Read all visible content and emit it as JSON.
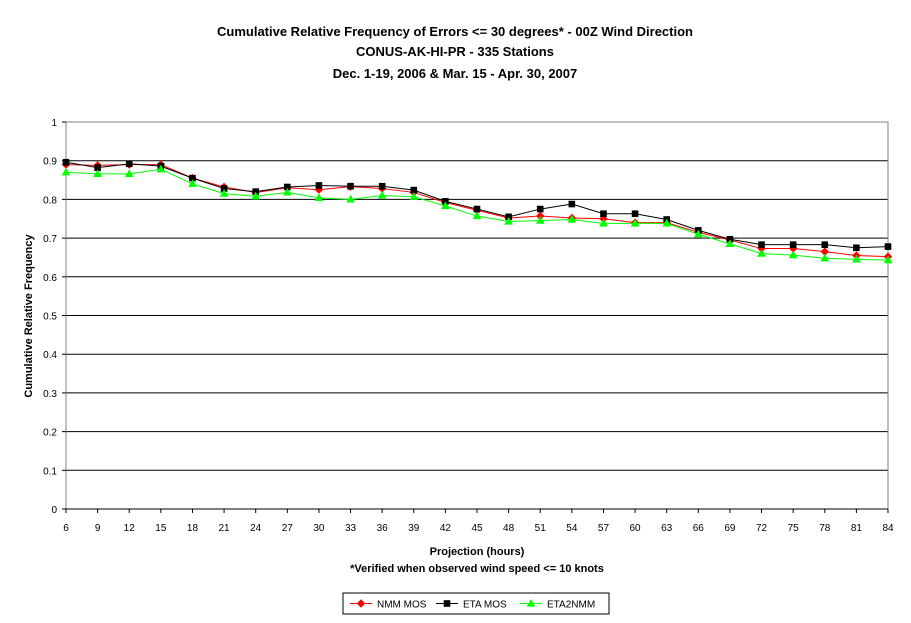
{
  "chart_data": {
    "type": "line",
    "title": "Cumulative Relative Frequency of Errors <= 30 degrees* - 00Z Wind Direction",
    "subtitle_lines": [
      "CONUS-AK-HI-PR - 335 Stations",
      "Dec. 1-19, 2006 & Mar. 15 - Apr. 30, 2007"
    ],
    "xlabel": "Projection (hours)",
    "footnote": "*Verified when observed wind speed <= 10 knots",
    "ylabel": "Cumulative Relative Frequency",
    "ylim": [
      0,
      1
    ],
    "yticks": [
      0,
      0.1,
      0.2,
      0.3,
      0.4,
      0.5,
      0.6,
      0.7,
      0.8,
      0.9,
      1
    ],
    "ytick_labels": [
      "0",
      "0.1",
      "0.2",
      "0.3",
      "0.4",
      "0.5",
      "0.6",
      "0.7",
      "0.8",
      "0.9",
      "1"
    ],
    "grid": "horizontal",
    "legend_position": "bottom",
    "x": [
      6,
      9,
      12,
      15,
      18,
      21,
      24,
      27,
      30,
      33,
      36,
      39,
      42,
      45,
      48,
      51,
      54,
      57,
      60,
      63,
      66,
      69,
      72,
      75,
      78,
      81,
      84
    ],
    "series": [
      {
        "name": "NMM MOS",
        "color": "#ff0000",
        "marker": "diamond",
        "values": [
          0.89,
          0.888,
          0.89,
          0.89,
          0.855,
          0.832,
          0.818,
          0.83,
          0.825,
          0.833,
          0.828,
          0.818,
          0.792,
          0.772,
          0.752,
          0.757,
          0.752,
          0.75,
          0.74,
          0.74,
          0.715,
          0.695,
          0.673,
          0.673,
          0.665,
          0.655,
          0.652
        ]
      },
      {
        "name": "ETA MOS",
        "color": "#000000",
        "marker": "square",
        "values": [
          0.896,
          0.882,
          0.892,
          0.886,
          0.855,
          0.828,
          0.82,
          0.832,
          0.836,
          0.834,
          0.834,
          0.824,
          0.795,
          0.775,
          0.755,
          0.775,
          0.788,
          0.763,
          0.763,
          0.748,
          0.72,
          0.697,
          0.683,
          0.683,
          0.683,
          0.675,
          0.678
        ]
      },
      {
        "name": "ETA2NMM",
        "color": "#00ff00",
        "marker": "triangle",
        "values": [
          0.87,
          0.866,
          0.866,
          0.878,
          0.84,
          0.815,
          0.808,
          0.818,
          0.804,
          0.8,
          0.81,
          0.807,
          0.783,
          0.757,
          0.743,
          0.745,
          0.748,
          0.738,
          0.738,
          0.738,
          0.71,
          0.685,
          0.66,
          0.656,
          0.648,
          0.645,
          0.643
        ]
      }
    ]
  }
}
